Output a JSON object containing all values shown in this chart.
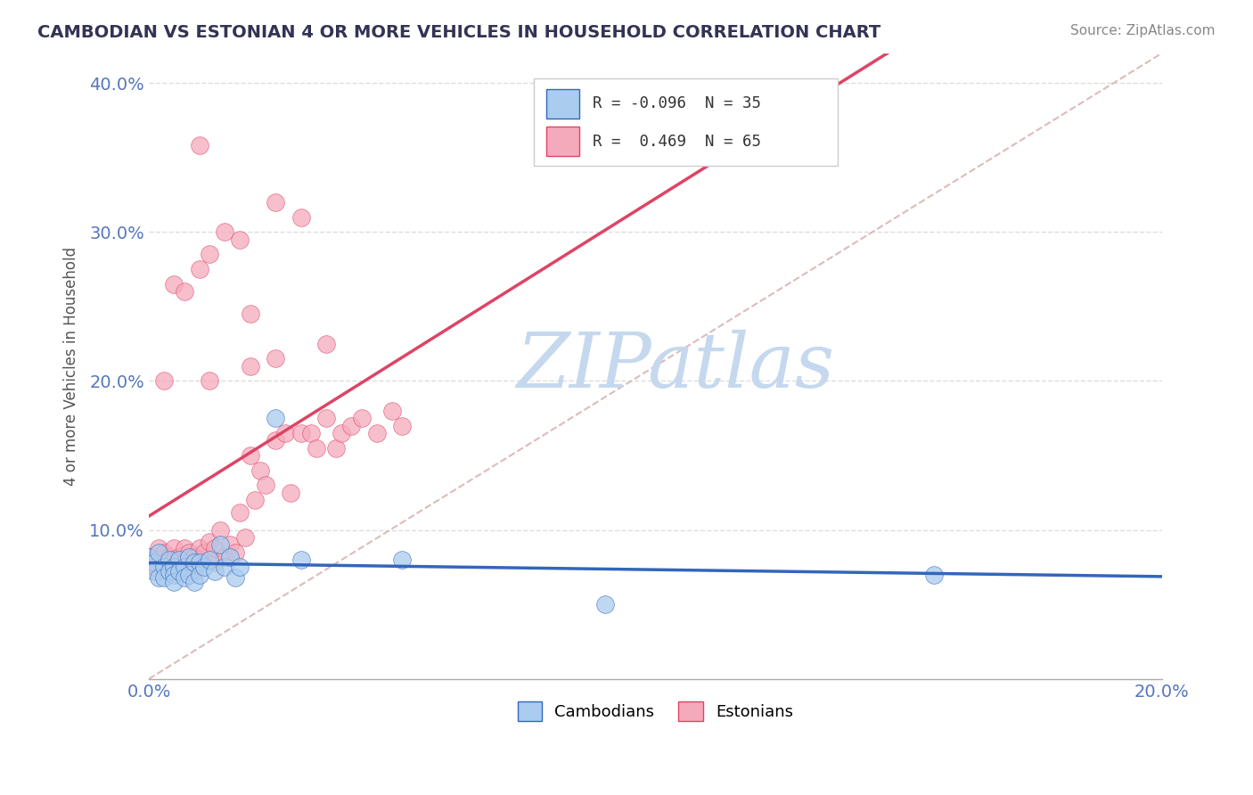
{
  "title": "CAMBODIAN VS ESTONIAN 4 OR MORE VEHICLES IN HOUSEHOLD CORRELATION CHART",
  "source": "Source: ZipAtlas.com",
  "ylabel": "4 or more Vehicles in Household",
  "xlim": [
    0.0,
    0.2
  ],
  "ylim": [
    0.0,
    0.42
  ],
  "legend_cambodian": "Cambodians",
  "legend_estonian": "Estonians",
  "r_cambodian": -0.096,
  "n_cambodian": 35,
  "r_estonian": 0.469,
  "n_estonian": 65,
  "cambodian_color": "#aaccee",
  "estonian_color": "#f5aabb",
  "trendline_cambodian_color": "#3366bb",
  "trendline_estonian_color": "#dd4466",
  "diag_color": "#ddbbbb",
  "grid_color": "#dddddd",
  "watermark_color": "#c5d8ee",
  "background_color": "#ffffff",
  "title_color": "#333355",
  "axis_color": "#5577bb",
  "ylabel_color": "#555555",
  "cambodian_x": [
    0.0,
    0.001,
    0.001,
    0.002,
    0.002,
    0.003,
    0.003,
    0.004,
    0.004,
    0.005,
    0.005,
    0.005,
    0.006,
    0.006,
    0.007,
    0.007,
    0.008,
    0.008,
    0.009,
    0.009,
    0.01,
    0.01,
    0.011,
    0.012,
    0.013,
    0.014,
    0.015,
    0.016,
    0.017,
    0.018,
    0.025,
    0.03,
    0.05,
    0.09,
    0.155
  ],
  "cambodian_y": [
    0.082,
    0.078,
    0.072,
    0.085,
    0.068,
    0.075,
    0.068,
    0.08,
    0.072,
    0.075,
    0.07,
    0.065,
    0.08,
    0.072,
    0.075,
    0.068,
    0.082,
    0.07,
    0.078,
    0.065,
    0.078,
    0.07,
    0.075,
    0.08,
    0.072,
    0.09,
    0.075,
    0.082,
    0.068,
    0.075,
    0.175,
    0.08,
    0.08,
    0.05,
    0.07
  ],
  "estonian_x": [
    0.0,
    0.001,
    0.001,
    0.002,
    0.002,
    0.003,
    0.003,
    0.004,
    0.004,
    0.005,
    0.005,
    0.005,
    0.006,
    0.006,
    0.007,
    0.007,
    0.008,
    0.008,
    0.009,
    0.009,
    0.01,
    0.01,
    0.011,
    0.012,
    0.013,
    0.013,
    0.014,
    0.015,
    0.016,
    0.017,
    0.018,
    0.019,
    0.02,
    0.021,
    0.022,
    0.023,
    0.025,
    0.027,
    0.028,
    0.03,
    0.032,
    0.033,
    0.035,
    0.037,
    0.038,
    0.04,
    0.042,
    0.045,
    0.048,
    0.05,
    0.003,
    0.005,
    0.007,
    0.01,
    0.012,
    0.015,
    0.018,
    0.02,
    0.025,
    0.03,
    0.01,
    0.012,
    0.02,
    0.025,
    0.035
  ],
  "estonian_y": [
    0.082,
    0.078,
    0.075,
    0.088,
    0.072,
    0.085,
    0.078,
    0.082,
    0.072,
    0.088,
    0.08,
    0.072,
    0.082,
    0.075,
    0.088,
    0.078,
    0.085,
    0.075,
    0.082,
    0.072,
    0.088,
    0.08,
    0.085,
    0.092,
    0.078,
    0.088,
    0.1,
    0.082,
    0.09,
    0.085,
    0.112,
    0.095,
    0.15,
    0.12,
    0.14,
    0.13,
    0.16,
    0.165,
    0.125,
    0.165,
    0.165,
    0.155,
    0.175,
    0.155,
    0.165,
    0.17,
    0.175,
    0.165,
    0.18,
    0.17,
    0.2,
    0.265,
    0.26,
    0.275,
    0.285,
    0.3,
    0.295,
    0.245,
    0.32,
    0.31,
    0.358,
    0.2,
    0.21,
    0.215,
    0.225
  ]
}
